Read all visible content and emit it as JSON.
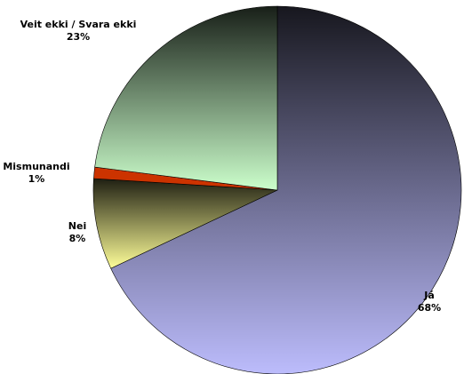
{
  "chart_data": {
    "type": "pie",
    "categories": [
      "Já",
      "Nei",
      "Mismunandi",
      "Veit ekki / Svara ekki"
    ],
    "values": [
      68,
      8,
      1,
      23
    ],
    "value_labels": [
      "68%",
      "8%",
      "1%",
      "23%"
    ],
    "colors": [
      "#bcbcfc",
      "#ffff99",
      "#cc3300",
      "#ccffcc"
    ]
  }
}
